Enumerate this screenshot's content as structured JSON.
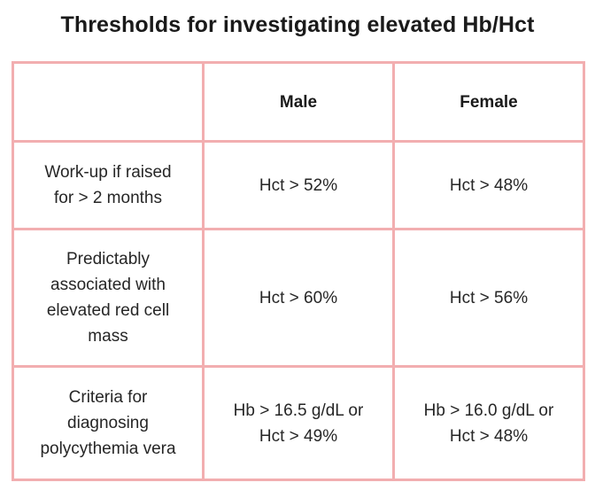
{
  "title": "Thresholds for investigating elevated Hb/Hct",
  "table": {
    "headers": [
      "",
      "Male",
      "Female"
    ],
    "rows": [
      {
        "label_lines": [
          "Work-up if raised",
          "for > 2 months"
        ],
        "male_lines": [
          "Hct > 52%"
        ],
        "female_lines": [
          "Hct > 48%"
        ]
      },
      {
        "label_lines": [
          "Predictably",
          "associated with",
          "elevated red cell",
          "mass"
        ],
        "male_lines": [
          "Hct > 60%"
        ],
        "female_lines": [
          "Hct > 56%"
        ]
      },
      {
        "label_lines": [
          "Criteria for",
          "diagnosing",
          "polycythemia vera"
        ],
        "male_lines": [
          "Hb > 16.5 g/dL or",
          "Hct > 49%"
        ],
        "female_lines": [
          "Hb > 16.0 g/dL or",
          "Hct > 48%"
        ]
      }
    ]
  },
  "colors": {
    "border": "#f2aeb0",
    "text": "#262626",
    "background": "#ffffff"
  }
}
